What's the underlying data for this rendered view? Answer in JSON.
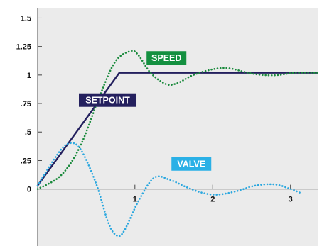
{
  "chart_data": {
    "type": "line",
    "xlim": [
      -0.25,
      3.35
    ],
    "ylim": [
      -0.5,
      1.59
    ],
    "grid": false,
    "legend": "inline labels",
    "x_ticks": [
      {
        "value": 1,
        "label": "1"
      },
      {
        "value": 2,
        "label": "2"
      },
      {
        "value": 3,
        "label": "3"
      }
    ],
    "y_ticks": [
      {
        "value": 0,
        "label": "0"
      },
      {
        "value": 0.25,
        "label": ".25"
      },
      {
        "value": 0.5,
        "label": ".5"
      },
      {
        "value": 0.75,
        "label": ".75"
      },
      {
        "value": 1,
        "label": "1"
      },
      {
        "value": 1.25,
        "label": "1.25"
      },
      {
        "value": 1.5,
        "label": "1.5"
      }
    ],
    "series": [
      {
        "name": "SETPOINT",
        "color": "#24205e",
        "style": "solid",
        "label_color": "#24205e",
        "points": [
          [
            -0.25,
            0.03
          ],
          [
            0.8,
            1.02
          ],
          [
            3.35,
            1.02
          ]
        ]
      },
      {
        "name": "SPEED",
        "color": "#1a8a3c",
        "style": "dotted",
        "label_color": "#149040",
        "points": [
          [
            -0.25,
            0.0
          ],
          [
            0.05,
            0.12
          ],
          [
            0.3,
            0.38
          ],
          [
            0.55,
            0.82
          ],
          [
            0.75,
            1.12
          ],
          [
            0.95,
            1.21
          ],
          [
            1.05,
            1.17
          ],
          [
            1.2,
            1.02
          ],
          [
            1.4,
            0.92
          ],
          [
            1.55,
            0.93
          ],
          [
            1.75,
            1.0
          ],
          [
            2.0,
            1.05
          ],
          [
            2.2,
            1.06
          ],
          [
            2.45,
            1.02
          ],
          [
            2.65,
            1.0
          ],
          [
            2.85,
            1.0
          ],
          [
            3.05,
            1.02
          ],
          [
            3.35,
            1.02
          ]
        ]
      },
      {
        "name": "VALVE",
        "color": "#2aa7df",
        "style": "dotted",
        "label_color": "#2ab0e6",
        "points": [
          [
            -0.25,
            0.03
          ],
          [
            0.0,
            0.3
          ],
          [
            0.15,
            0.4
          ],
          [
            0.3,
            0.35
          ],
          [
            0.5,
            0.05
          ],
          [
            0.65,
            -0.28
          ],
          [
            0.75,
            -0.4
          ],
          [
            0.85,
            -0.38
          ],
          [
            1.05,
            -0.1
          ],
          [
            1.25,
            0.1
          ],
          [
            1.45,
            0.08
          ],
          [
            1.65,
            0.02
          ],
          [
            1.85,
            -0.03
          ],
          [
            2.05,
            -0.05
          ],
          [
            2.3,
            -0.02
          ],
          [
            2.55,
            0.03
          ],
          [
            2.8,
            0.04
          ],
          [
            3.0,
            0.0
          ],
          [
            3.15,
            -0.04
          ]
        ]
      }
    ],
    "labels": [
      {
        "text": "SETPOINT",
        "x": 0.28,
        "y": 0.78
      },
      {
        "text": "SPEED",
        "x": 1.15,
        "y": 1.15
      },
      {
        "text": "VALVE",
        "x": 1.47,
        "y": 0.22
      }
    ]
  }
}
